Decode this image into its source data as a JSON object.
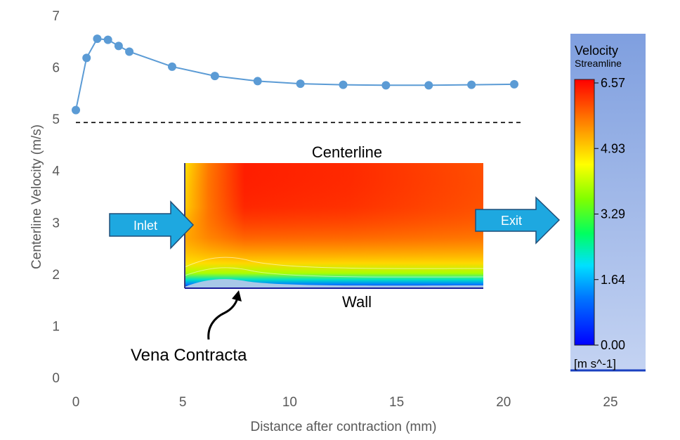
{
  "chart_data": {
    "type": "line",
    "xlabel": "Distance after contraction (mm)",
    "ylabel": "Centerline Velocity (m/s)",
    "xlim": [
      0,
      25
    ],
    "ylim": [
      0,
      7
    ],
    "xticks": [
      "0",
      "5",
      "10",
      "15",
      "20",
      "25"
    ],
    "yticks": [
      "0",
      "1",
      "2",
      "3",
      "4",
      "5",
      "6",
      "7"
    ],
    "grid": false,
    "series": [
      {
        "x": [
          0,
          0.5,
          1,
          1.5,
          2,
          2.5,
          4.5,
          6.5,
          8.5,
          10.5,
          12.5,
          14.5,
          16.5,
          18.5,
          20.5
        ],
        "y": [
          5.17,
          6.18,
          6.55,
          6.53,
          6.41,
          6.3,
          6.01,
          5.83,
          5.73,
          5.68,
          5.66,
          5.65,
          5.65,
          5.66,
          5.67
        ],
        "color": "#5b9bd5"
      }
    ],
    "reference_line": {
      "y": 4.93,
      "style": "dashed",
      "color": "#000000"
    }
  },
  "annotations": {
    "centerline": "Centerline",
    "wall": "Wall",
    "vena_contracta": "Vena Contracta",
    "inlet": "Inlet",
    "exit": "Exit"
  },
  "colorbar": {
    "title": "Velocity",
    "subtitle": "Streamline",
    "units": "[m s^-1]",
    "ticks": [
      "6.57",
      "4.93",
      "3.29",
      "1.64",
      "0.00"
    ],
    "background": "#8eaee6"
  },
  "colors": {
    "line": "#5b9bd5",
    "arrow_fill": "#1ea8e0",
    "arrow_stroke": "#1f4e79"
  }
}
